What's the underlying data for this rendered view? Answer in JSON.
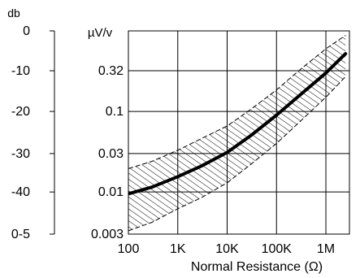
{
  "chart_data": {
    "type": "line",
    "x_scale": "log",
    "y_scale": "log",
    "xlabel": "Normal Resistance (Ω)",
    "xlim": [
      100,
      3000000
    ],
    "x_ticks": [
      {
        "value": 100,
        "label": "100"
      },
      {
        "value": 1000,
        "label": "1K"
      },
      {
        "value": 10000,
        "label": "10K"
      },
      {
        "value": 100000,
        "label": "100K"
      },
      {
        "value": 1000000,
        "label": "1M"
      }
    ],
    "ylabel": "µV/v",
    "ylim": [
      0.003,
      1
    ],
    "y_ticks": [
      {
        "value": 0.003,
        "label": "0.003"
      },
      {
        "value": 0.01,
        "label": "0.01"
      },
      {
        "value": 0.03,
        "label": "0.03"
      },
      {
        "value": 0.1,
        "label": "0.1"
      },
      {
        "value": 0.32,
        "label": "0.32"
      }
    ],
    "y2label": "db",
    "y2_ticks": [
      {
        "at_y": 1,
        "label": "0"
      },
      {
        "at_y": 0.32,
        "label": "-10"
      },
      {
        "at_y": 0.1,
        "label": "-20"
      },
      {
        "at_y": 0.03,
        "label": "-30"
      },
      {
        "at_y": 0.01,
        "label": "-40"
      },
      {
        "at_y": 0.003,
        "label": "0-5"
      }
    ],
    "grid": true,
    "series": [
      {
        "x": [
          100,
          300,
          1000,
          3000,
          10000,
          30000,
          100000,
          300000,
          1000000,
          2500000
        ],
        "y": [
          0.0095,
          0.0115,
          0.0155,
          0.021,
          0.031,
          0.05,
          0.09,
          0.16,
          0.3,
          0.52
        ]
      }
    ],
    "band": {
      "x": [
        100,
        300,
        1000,
        3000,
        10000,
        30000,
        100000,
        300000,
        1000000,
        2500000
      ],
      "upper": [
        0.0195,
        0.024,
        0.033,
        0.046,
        0.066,
        0.106,
        0.185,
        0.33,
        0.6,
        0.88
      ],
      "lower": [
        0.0033,
        0.0042,
        0.0062,
        0.0085,
        0.013,
        0.022,
        0.04,
        0.075,
        0.15,
        0.27
      ]
    }
  }
}
